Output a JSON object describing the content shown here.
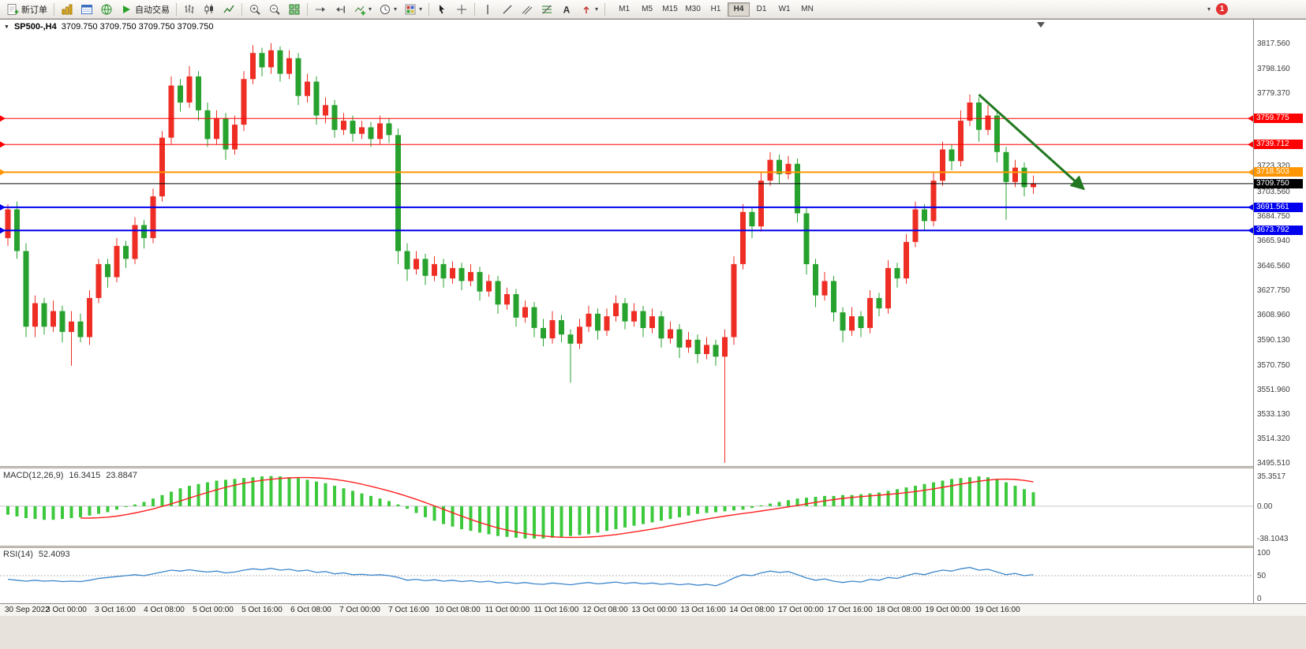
{
  "toolbar": {
    "new_order_label": "新订单",
    "auto_trading_label": "自动交易",
    "timeframes": [
      "M1",
      "M5",
      "M15",
      "M30",
      "H1",
      "H4",
      "D1",
      "W1",
      "MN"
    ],
    "active_timeframe": "H4",
    "notification_count": "1",
    "icons": [
      "new-order-icon",
      "market-watch-icon",
      "data-window-icon",
      "navigator-icon",
      "auto-trading-icon",
      "bar-chart-icon",
      "candlestick-chart-icon",
      "line-chart-icon",
      "zoom-in-icon",
      "zoom-out-icon",
      "tile-windows-icon",
      "auto-scroll-icon",
      "chart-shift-icon",
      "indicators-icon",
      "periods-icon",
      "templates-icon",
      "cursor-icon",
      "crosshair-icon",
      "vertical-line-icon",
      "trendline-icon",
      "channel-icon",
      "fibonacci-icon",
      "text-icon",
      "arrows-icon"
    ]
  },
  "chart": {
    "symbol_period": "SP500-,H4",
    "ohlc": "3709.750 3709.750 3709.750 3709.750"
  },
  "indicators": {
    "macd": {
      "label": "MACD(12,26,9)",
      "value1": "16.3415",
      "value2": "23.8847",
      "axis_labels": [
        "35.3517",
        "0.00",
        "-38.1043"
      ]
    },
    "rsi": {
      "label": "RSI(14)",
      "value": "52.4093",
      "axis_labels": [
        "100",
        "50",
        "0"
      ]
    }
  },
  "colors": {
    "bull": "#ee2e24",
    "bear": "#27a22e",
    "macd_hist": "#3cc93c",
    "macd_signal": "#ff2020",
    "rsi_line": "#3c86cc",
    "arrow": "#217821",
    "grid": "#c8c8c8"
  },
  "chart_data": {
    "type": "candlestick",
    "symbol": "SP500-",
    "timeframe": "H4",
    "y_range": [
      3493.1,
      3835.5
    ],
    "macd_range": [
      -39,
      36
    ],
    "rsi_range": [
      0,
      100
    ],
    "price_axis_gray_labels": [
      "3817.560",
      "3798.160",
      "3779.370",
      "3723.320",
      "3703.560",
      "3684.750",
      "3665.940",
      "3646.560",
      "3627.750",
      "3608.960",
      "3590.130",
      "3570.750",
      "3551.960",
      "3533.130",
      "3514.320",
      "3495.510"
    ],
    "hlines": [
      {
        "price": 3759.775,
        "label": "3759.775",
        "color": "#ff0000",
        "width": 1
      },
      {
        "price": 3739.712,
        "label": "3739.712",
        "color": "#ff0000",
        "width": 1
      },
      {
        "price": 3718.503,
        "label": "3718.503",
        "color": "#ff9600",
        "width": 2
      },
      {
        "price": 3709.75,
        "label": "3709.750",
        "color": "#000000",
        "width": 1,
        "current": true
      },
      {
        "price": 3691.561,
        "label": "3691.561",
        "color": "#0000ee",
        "width": 2
      },
      {
        "price": 3673.792,
        "label": "3673.792",
        "color": "#0000ee",
        "width": 2
      }
    ],
    "time_labels": [
      "30 Sep 2022",
      "3 Oct 00:00",
      "3 Oct 16:00",
      "4 Oct 08:00",
      "5 Oct 00:00",
      "5 Oct 16:00",
      "6 Oct 08:00",
      "7 Oct 00:00",
      "7 Oct 16:00",
      "10 Oct 08:00",
      "11 Oct 00:00",
      "11 Oct 16:00",
      "12 Oct 08:00",
      "13 Oct 00:00",
      "13 Oct 16:00",
      "14 Oct 08:00",
      "17 Oct 00:00",
      "17 Oct 16:00",
      "18 Oct 08:00",
      "19 Oct 00:00",
      "19 Oct 16:00"
    ],
    "candles": [
      [
        3668,
        3694,
        3662,
        3690
      ],
      [
        3690,
        3696,
        3652,
        3658
      ],
      [
        3658,
        3664,
        3592,
        3600
      ],
      [
        3600,
        3624,
        3592,
        3618
      ],
      [
        3618,
        3622,
        3594,
        3600
      ],
      [
        3600,
        3620,
        3596,
        3612
      ],
      [
        3612,
        3616,
        3588,
        3596
      ],
      [
        3596,
        3612,
        3570,
        3604
      ],
      [
        3604,
        3610,
        3588,
        3592
      ],
      [
        3592,
        3628,
        3586,
        3622
      ],
      [
        3622,
        3652,
        3618,
        3648
      ],
      [
        3648,
        3652,
        3630,
        3638
      ],
      [
        3638,
        3668,
        3634,
        3662
      ],
      [
        3662,
        3666,
        3645,
        3652
      ],
      [
        3652,
        3684,
        3648,
        3678
      ],
      [
        3678,
        3682,
        3660,
        3668
      ],
      [
        3668,
        3706,
        3664,
        3700
      ],
      [
        3700,
        3750,
        3696,
        3745
      ],
      [
        3745,
        3792,
        3740,
        3785
      ],
      [
        3785,
        3790,
        3765,
        3772
      ],
      [
        3772,
        3800,
        3768,
        3792
      ],
      [
        3792,
        3796,
        3758,
        3766
      ],
      [
        3766,
        3772,
        3738,
        3744
      ],
      [
        3744,
        3766,
        3740,
        3760
      ],
      [
        3760,
        3764,
        3728,
        3736
      ],
      [
        3736,
        3762,
        3732,
        3755
      ],
      [
        3755,
        3796,
        3750,
        3790
      ],
      [
        3790,
        3816,
        3786,
        3810
      ],
      [
        3810,
        3814,
        3792,
        3799
      ],
      [
        3799,
        3817.5,
        3794,
        3812
      ],
      [
        3812,
        3815,
        3788,
        3794
      ],
      [
        3794,
        3812,
        3790,
        3806
      ],
      [
        3806,
        3810,
        3770,
        3777
      ],
      [
        3777,
        3794,
        3772,
        3788
      ],
      [
        3788,
        3792,
        3755,
        3762
      ],
      [
        3762,
        3776,
        3756,
        3770
      ],
      [
        3770,
        3774,
        3745,
        3751
      ],
      [
        3751,
        3764,
        3747,
        3758
      ],
      [
        3758,
        3762,
        3742,
        3748
      ],
      [
        3748,
        3758,
        3744,
        3753
      ],
      [
        3753,
        3757,
        3738,
        3744
      ],
      [
        3744,
        3762,
        3740,
        3756
      ],
      [
        3756,
        3760,
        3741,
        3747
      ],
      [
        3747,
        3752,
        3648,
        3658
      ],
      [
        3658,
        3664,
        3635,
        3644
      ],
      [
        3644,
        3658,
        3640,
        3652
      ],
      [
        3652,
        3656,
        3632,
        3639
      ],
      [
        3639,
        3654,
        3635,
        3648
      ],
      [
        3648,
        3652,
        3630,
        3637
      ],
      [
        3637,
        3650,
        3633,
        3645
      ],
      [
        3645,
        3649,
        3628,
        3635
      ],
      [
        3635,
        3648,
        3631,
        3642
      ],
      [
        3642,
        3646,
        3620,
        3627
      ],
      [
        3627,
        3640,
        3623,
        3635
      ],
      [
        3635,
        3639,
        3610,
        3617
      ],
      [
        3617,
        3630,
        3613,
        3625
      ],
      [
        3625,
        3629,
        3600,
        3607
      ],
      [
        3607,
        3620,
        3603,
        3615
      ],
      [
        3615,
        3619,
        3592,
        3599
      ],
      [
        3599,
        3606,
        3585,
        3591
      ],
      [
        3591,
        3612,
        3587,
        3605
      ],
      [
        3605,
        3609,
        3588,
        3594
      ],
      [
        3594,
        3598,
        3557,
        3587
      ],
      [
        3587,
        3606,
        3583,
        3600
      ],
      [
        3600,
        3616,
        3596,
        3610
      ],
      [
        3610,
        3614,
        3590,
        3597
      ],
      [
        3597,
        3614,
        3593,
        3608
      ],
      [
        3608,
        3624,
        3604,
        3618
      ],
      [
        3618,
        3622,
        3598,
        3604
      ],
      [
        3604,
        3618,
        3600,
        3612
      ],
      [
        3612,
        3616,
        3592,
        3599
      ],
      [
        3599,
        3614,
        3595,
        3608
      ],
      [
        3608,
        3612,
        3584,
        3591
      ],
      [
        3591,
        3604,
        3587,
        3598
      ],
      [
        3598,
        3602,
        3576,
        3584
      ],
      [
        3584,
        3596,
        3580,
        3590
      ],
      [
        3590,
        3594,
        3572,
        3579
      ],
      [
        3579,
        3592,
        3575,
        3586
      ],
      [
        3586,
        3590,
        3570,
        3577
      ],
      [
        3577,
        3598,
        3495.5,
        3592
      ],
      [
        3592,
        3654,
        3586,
        3648
      ],
      [
        3648,
        3694,
        3644,
        3688
      ],
      [
        3688,
        3692,
        3668,
        3677
      ],
      [
        3677,
        3718,
        3673,
        3712
      ],
      [
        3712,
        3734,
        3708,
        3728
      ],
      [
        3728,
        3732,
        3710,
        3717
      ],
      [
        3717,
        3731,
        3713,
        3725
      ],
      [
        3725,
        3729,
        3680,
        3687
      ],
      [
        3687,
        3692,
        3640,
        3648
      ],
      [
        3648,
        3652,
        3615,
        3624
      ],
      [
        3624,
        3642,
        3620,
        3635
      ],
      [
        3635,
        3639,
        3604,
        3611
      ],
      [
        3611,
        3615,
        3588,
        3597
      ],
      [
        3597,
        3615,
        3593,
        3608
      ],
      [
        3608,
        3612,
        3592,
        3599
      ],
      [
        3599,
        3628,
        3595,
        3622
      ],
      [
        3622,
        3626,
        3608,
        3614
      ],
      [
        3614,
        3651,
        3610,
        3645
      ],
      [
        3645,
        3649,
        3630,
        3637
      ],
      [
        3637,
        3671,
        3633,
        3665
      ],
      [
        3665,
        3696,
        3661,
        3690
      ],
      [
        3690,
        3694,
        3674,
        3681
      ],
      [
        3681,
        3718,
        3677,
        3712
      ],
      [
        3712,
        3742,
        3708,
        3736
      ],
      [
        3736,
        3740,
        3720,
        3727
      ],
      [
        3727,
        3766,
        3723,
        3758
      ],
      [
        3758,
        3778,
        3754,
        3772
      ],
      [
        3772,
        3776,
        3742,
        3751
      ],
      [
        3751,
        3770,
        3747,
        3762
      ],
      [
        3762,
        3766,
        3726,
        3734
      ],
      [
        3734,
        3738,
        3682,
        3711
      ],
      [
        3711,
        3728,
        3707,
        3722
      ],
      [
        3722,
        3726,
        3700,
        3707
      ],
      [
        3707,
        3716,
        3702,
        3709.75
      ]
    ],
    "macd_hist": [
      -10,
      -12,
      -14,
      -15,
      -16,
      -16,
      -15,
      -14,
      -13,
      -11,
      -9,
      -7,
      -4,
      -1,
      2,
      5,
      9,
      13,
      17,
      21,
      24,
      26,
      28,
      30,
      31,
      32,
      33,
      34,
      35,
      35.35,
      35,
      34,
      33,
      31,
      29,
      27,
      24,
      21,
      18,
      15,
      12,
      9,
      6,
      2,
      -3,
      -8,
      -13,
      -17,
      -21,
      -24,
      -27,
      -29,
      -31,
      -33,
      -35,
      -36,
      -37,
      -38,
      -38.1,
      -38,
      -37,
      -36,
      -35,
      -34,
      -33,
      -31,
      -29,
      -27,
      -25,
      -23,
      -21,
      -19,
      -17,
      -15,
      -13,
      -11,
      -9,
      -8,
      -7,
      -6,
      -5,
      -4,
      -2,
      1,
      3,
      5,
      7,
      9,
      10,
      11,
      12,
      12,
      13,
      13,
      14,
      15,
      16,
      18,
      20,
      22,
      24,
      26,
      28,
      30,
      32,
      33,
      34,
      35,
      34,
      32,
      28,
      24,
      20,
      16.34
    ],
    "rsi": [
      42,
      40,
      38,
      40,
      38,
      39,
      37,
      38,
      37,
      40,
      44,
      46,
      48,
      50,
      52,
      50,
      54,
      58,
      62,
      60,
      63,
      60,
      58,
      60,
      56,
      58,
      62,
      65,
      63,
      66,
      62,
      64,
      60,
      62,
      57,
      59,
      54,
      56,
      52,
      53,
      51,
      52,
      50,
      46,
      40,
      42,
      39,
      41,
      38,
      40,
      37,
      39,
      36,
      38,
      34,
      36,
      33,
      35,
      32,
      31,
      34,
      32,
      30,
      33,
      35,
      32,
      34,
      36,
      33,
      35,
      32,
      34,
      31,
      33,
      30,
      32,
      29,
      31,
      28,
      35,
      45,
      52,
      50,
      56,
      60,
      57,
      59,
      52,
      45,
      40,
      43,
      38,
      35,
      38,
      36,
      42,
      40,
      46,
      44,
      50,
      55,
      52,
      58,
      62,
      60,
      65,
      68,
      62,
      64,
      58,
      52,
      55,
      50,
      52.41
    ],
    "annotation_arrow": {
      "from": {
        "index": 107,
        "price": 3778
      },
      "to": {
        "index": 118.5,
        "price": 3706
      }
    }
  }
}
